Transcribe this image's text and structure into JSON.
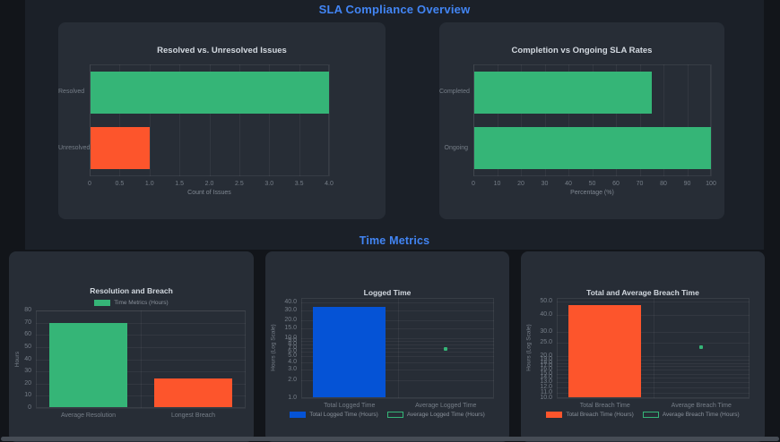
{
  "sections": {
    "overview": {
      "title": "SLA Compliance Overview"
    },
    "time_metrics": {
      "title": "Time Metrics"
    }
  },
  "colors": {
    "accent_blue": "#4285f4",
    "green": "#35b577",
    "orange": "#fd552c",
    "bar_blue": "#0553d6",
    "page_bg": "#12151a",
    "panel_bg": "#1b2028",
    "card_bg": "#272d36"
  },
  "chart_data": [
    {
      "id": "resolved_vs_unresolved",
      "type": "bar",
      "orientation": "horizontal",
      "title": "Resolved vs. Unresolved Issues",
      "categories": [
        "Resolved",
        "Unresolved"
      ],
      "values": [
        4,
        1
      ],
      "bar_colors": [
        "#35b577",
        "#fd552c"
      ],
      "xlabel": "Count of Issues",
      "xlim": [
        0,
        4
      ],
      "grid": true,
      "xticks": {
        "values": [
          0,
          0.5,
          1,
          1.5,
          2,
          2.5,
          3,
          3.5,
          4
        ],
        "labels": [
          "0",
          "0.5",
          "1.0",
          "1.5",
          "2.0",
          "2.5",
          "3.0",
          "3.5",
          "4.0"
        ]
      }
    },
    {
      "id": "completion_vs_ongoing",
      "type": "bar",
      "orientation": "horizontal",
      "title": "Completion vs Ongoing SLA Rates",
      "categories": [
        "Completed",
        "Ongoing"
      ],
      "values": [
        75,
        100
      ],
      "bar_colors": [
        "#35b577",
        "#35b577"
      ],
      "xlabel": "Percentage (%)",
      "xlim": [
        0,
        100
      ],
      "grid": true,
      "xticks": {
        "values": [
          0,
          10,
          20,
          30,
          40,
          50,
          60,
          70,
          80,
          90,
          100
        ],
        "labels": [
          "0",
          "10",
          "20",
          "30",
          "40",
          "50",
          "60",
          "70",
          "80",
          "90",
          "100"
        ]
      }
    },
    {
      "id": "resolution_and_breach",
      "type": "bar",
      "orientation": "vertical",
      "title": "Resolution and Breach",
      "categories": [
        "Average Resolution",
        "Longest Breach"
      ],
      "values": [
        70,
        24
      ],
      "bar_colors": [
        "#35b577",
        "#fd552c"
      ],
      "ylabel": "Hours",
      "yscale": "linear",
      "ylim": [
        0,
        80
      ],
      "grid": true,
      "yticks": {
        "values": [
          0,
          10,
          20,
          30,
          40,
          50,
          60,
          70,
          80
        ],
        "labels": [
          "0",
          "10",
          "20",
          "30",
          "40",
          "50",
          "60",
          "70",
          "80"
        ]
      },
      "legend": {
        "position": "top",
        "items": [
          {
            "label": "Time Metrics (Hours)",
            "color": "#35b577",
            "fill": true
          }
        ]
      }
    },
    {
      "id": "logged_time",
      "type": "bar",
      "orientation": "vertical",
      "title": "Logged Time",
      "categories": [
        "Total Logged Time",
        "Average Logged Time"
      ],
      "series": [
        {
          "name": "Total Logged Time (Hours)",
          "style": "bar",
          "category": "Total Logged Time",
          "value": 34,
          "color": "#0553d6"
        },
        {
          "name": "Average Logged Time (Hours)",
          "style": "point",
          "category": "Average Logged Time",
          "value": 6.8,
          "color": "#35b577"
        }
      ],
      "ylabel": "Hours (Log Scale)",
      "yscale": "log",
      "ylim": [
        1,
        48
      ],
      "grid": true,
      "yticks": {
        "values": [
          40,
          30,
          20,
          15,
          10,
          9,
          8,
          7,
          6,
          5,
          4,
          3,
          2,
          1
        ],
        "labels": [
          "40.0",
          "30.0",
          "20.0",
          "15.0",
          "10.0",
          "9.0",
          "8.0",
          "7.0",
          "6.0",
          "5.0",
          "4.0",
          "3.0",
          "2.0",
          "1.0"
        ]
      },
      "legend": {
        "position": "bottom",
        "items": [
          {
            "label": "Total Logged Time (Hours)",
            "color": "#0553d6",
            "fill": true
          },
          {
            "label": "Average Logged Time (Hours)",
            "color": "#35b577",
            "fill": false
          }
        ]
      }
    },
    {
      "id": "total_and_average_breach_time",
      "type": "bar",
      "orientation": "vertical",
      "title": "Total and Average Breach Time",
      "categories": [
        "Total Breach Time",
        "Average Breach Time"
      ],
      "series": [
        {
          "name": "Total Breach Time (Hours)",
          "style": "bar",
          "category": "Total Breach Time",
          "value": 47,
          "color": "#fd552c"
        },
        {
          "name": "Average Breach Time (Hours)",
          "style": "point",
          "category": "Average Breach Time",
          "value": 23.5,
          "color": "#35b577"
        }
      ],
      "ylabel": "Hours (Log Scale)",
      "yscale": "log",
      "ylim": [
        10,
        53
      ],
      "grid": true,
      "yticks": {
        "values": [
          50,
          40,
          30,
          25,
          20,
          19,
          18,
          17,
          16,
          15,
          14,
          13,
          12,
          11,
          10
        ],
        "labels": [
          "50.0",
          "40.0",
          "30.0",
          "25.0",
          "20.0",
          "19.0",
          "18.0",
          "17.0",
          "16.0",
          "15.0",
          "14.0",
          "13.0",
          "12.0",
          "11.0",
          "10.0"
        ]
      },
      "legend": {
        "position": "bottom",
        "items": [
          {
            "label": "Total Breach Time (Hours)",
            "color": "#fd552c",
            "fill": true
          },
          {
            "label": "Average Breach Time (Hours)",
            "color": "#35b577",
            "fill": false
          }
        ]
      }
    }
  ]
}
